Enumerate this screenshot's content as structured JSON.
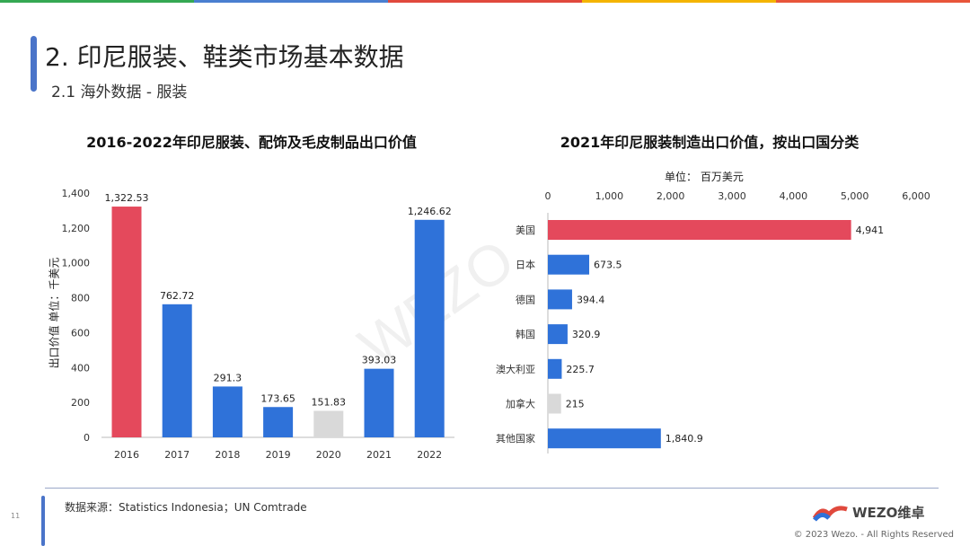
{
  "header": {
    "title": "2. 印尼服装、鞋类市场基本数据",
    "subtitle": "2.1 海外数据 - 服装"
  },
  "top_bar_colors": [
    "#34a853",
    "#4a7fd0",
    "#e0493d",
    "#f4b400",
    "#e8553a"
  ],
  "watermark": "WEZO维卓",
  "footer": {
    "page": "11",
    "source": "数据来源：Statistics Indonesia；UN Comtrade",
    "logo_text": "WEZO维卓",
    "copyright": "© 2023 Wezo. - All Rights Reserved"
  },
  "chart_data": [
    {
      "type": "bar",
      "title": "2016-2022年印尼服装、配饰及毛皮制品出口价值",
      "ylabel": "出口价值 单位：千美元",
      "categories": [
        "2016",
        "2017",
        "2018",
        "2019",
        "2020",
        "2021",
        "2022"
      ],
      "values": [
        1322.53,
        762.72,
        291.3,
        173.65,
        151.83,
        393.03,
        1246.62
      ],
      "labels": [
        "1,322.53",
        "762.72",
        "291.3",
        "173.65",
        "151.83",
        "393.03",
        "1,246.62"
      ],
      "colors": [
        "#e4495c",
        "#2f72d9",
        "#2f72d9",
        "#2f72d9",
        "#d9d9d9",
        "#2f72d9",
        "#2f72d9"
      ],
      "ylim": [
        0,
        1400
      ],
      "yticks": [
        "0",
        "200",
        "400",
        "600",
        "800",
        "1,000",
        "1,200",
        "1,400"
      ],
      "grid": false
    },
    {
      "type": "bar",
      "orientation": "horizontal",
      "title": "2021年印尼服装制造出口价值，按出口国分类",
      "unit": "单位：  百万美元",
      "categories": [
        "美国",
        "日本",
        "德国",
        "韩国",
        "澳大利亚",
        "加拿大",
        "其他国家"
      ],
      "values": [
        4941,
        673.5,
        394.4,
        320.9,
        225.7,
        215,
        1840.9
      ],
      "labels": [
        "4,941",
        "673.5",
        "394.4",
        "320.9",
        "225.7",
        "215",
        "1,840.9"
      ],
      "colors": [
        "#e4495c",
        "#2f72d9",
        "#2f72d9",
        "#2f72d9",
        "#2f72d9",
        "#d9d9d9",
        "#2f72d9"
      ],
      "xlim": [
        0,
        6000
      ],
      "xticks": [
        "0",
        "1,000",
        "2,000",
        "3,000",
        "4,000",
        "5,000",
        "6,000"
      ],
      "axis_position": "top",
      "grid": false
    }
  ]
}
